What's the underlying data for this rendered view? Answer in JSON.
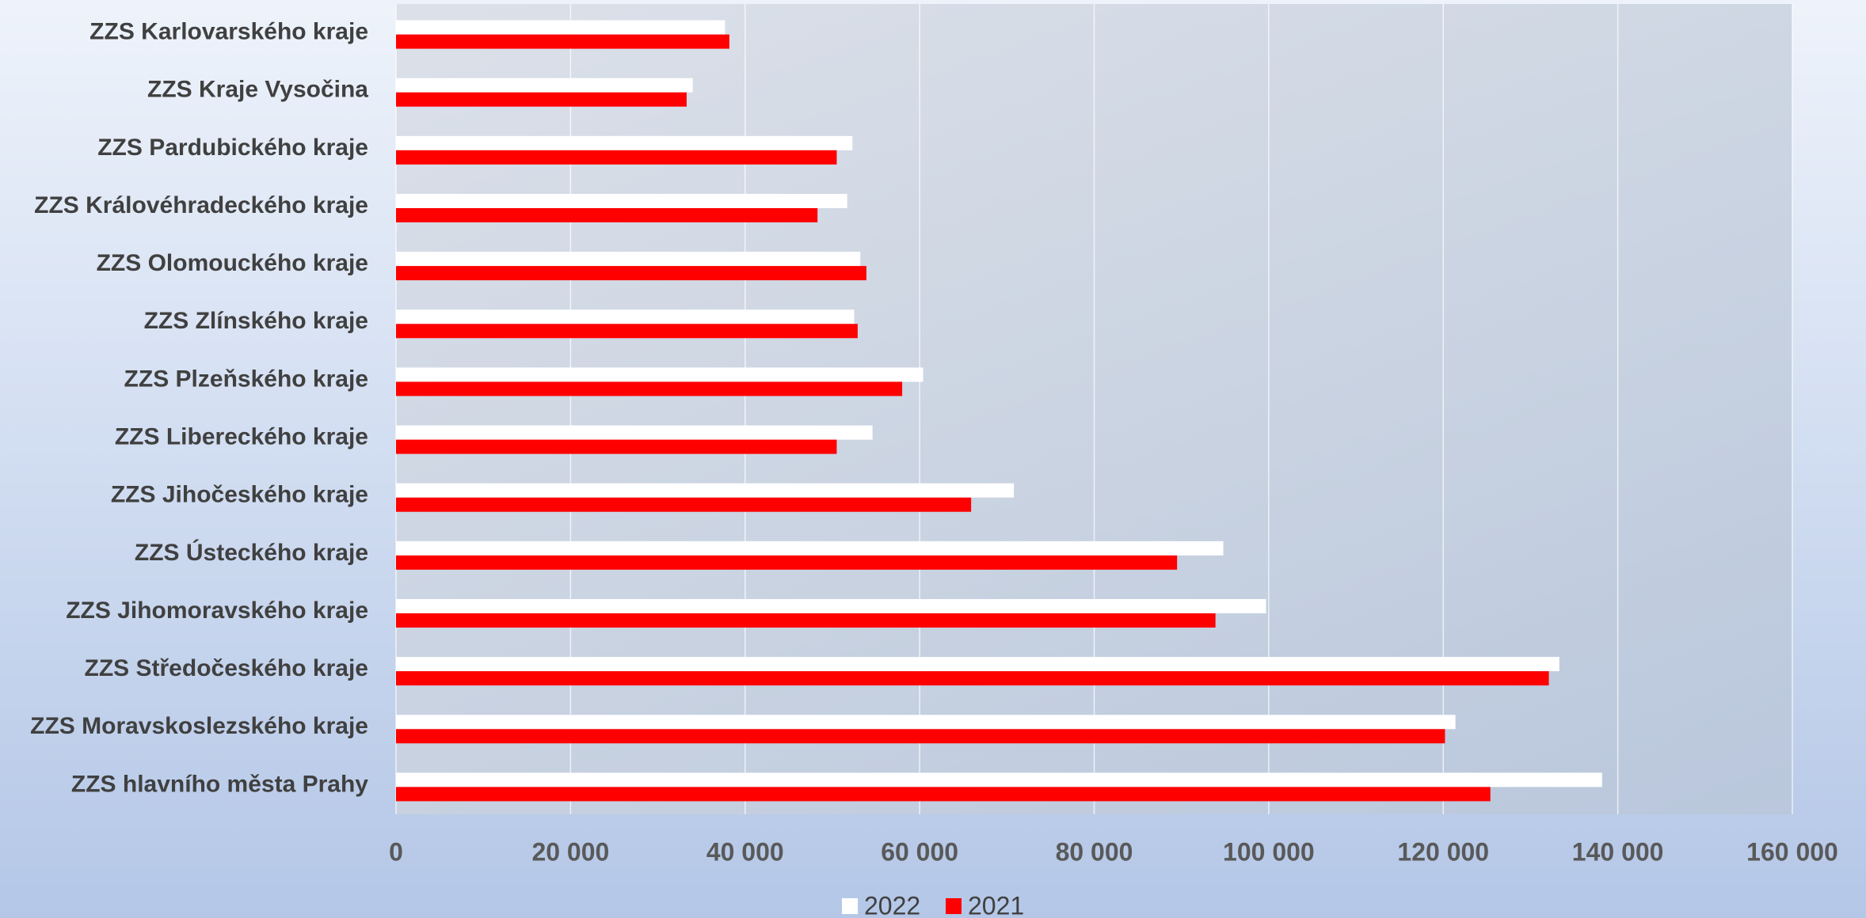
{
  "chart_data": {
    "type": "bar",
    "orientation": "horizontal",
    "categories": [
      "ZZS Karlovarského kraje",
      "ZZS Kraje Vysočina",
      "ZZS Pardubického kraje",
      "ZZS Královéhradeckého kraje",
      "ZZS Olomouckého kraje",
      "ZZS Zlínského kraje",
      "ZZS Plzeňského kraje",
      "ZZS Libereckého kraje",
      "ZZS Jihočeského kraje",
      "ZZS Ústeckého kraje",
      "ZZS Jihomoravského kraje",
      "ZZS Středočeského kraje",
      "ZZS Moravskoslezského kraje",
      "ZZS hlavního města Prahy"
    ],
    "series": [
      {
        "name": "2022",
        "color": "#ffffff",
        "values": [
          37700,
          34000,
          52300,
          51700,
          53200,
          52500,
          60400,
          54600,
          70800,
          94800,
          99700,
          133300,
          121400,
          138200
        ]
      },
      {
        "name": "2021",
        "color": "#ff0000",
        "values": [
          38200,
          33300,
          50500,
          48300,
          53900,
          52900,
          58000,
          50500,
          65900,
          89500,
          93900,
          132100,
          120200,
          125400
        ]
      }
    ],
    "xlim": [
      0,
      160000
    ],
    "xticks": [
      0,
      {
        "value": 20000,
        "label": "20 000"
      },
      {
        "value": 40000,
        "label": "40 000"
      },
      {
        "value": 60000,
        "label": "60 000"
      },
      {
        "value": 80000,
        "label": "80 000"
      },
      {
        "value": 100000,
        "label": "100 000"
      },
      {
        "value": 120000,
        "label": "120 000"
      },
      {
        "value": 140000,
        "label": "140 000"
      },
      {
        "value": 160000,
        "label": "160 000"
      }
    ],
    "grid": true,
    "legend": "bottom"
  }
}
